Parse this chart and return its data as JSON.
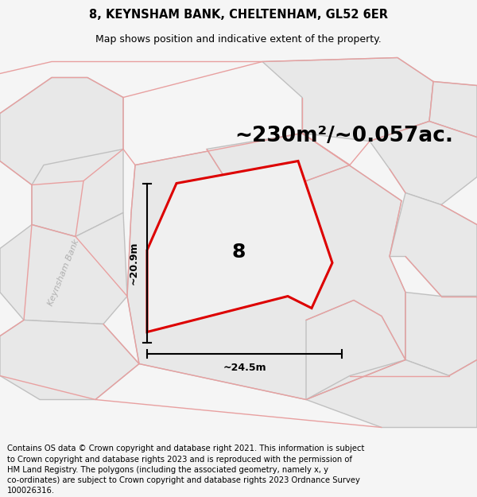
{
  "title_line1": "8, KEYNSHAM BANK, CHELTENHAM, GL52 6ER",
  "title_line2": "Map shows position and indicative extent of the property.",
  "area_text": "~230m²/~0.057ac.",
  "label_number": "8",
  "dim_width": "~24.5m",
  "dim_height": "~20.9m",
  "road_label": "Keynsham Bank",
  "footer_text": "Contains OS data © Crown copyright and database right 2021. This information is subject to Crown copyright and database rights 2023 and is reproduced with the permission of HM Land Registry. The polygons (including the associated geometry, namely x, y co-ordinates) are subject to Crown copyright and database rights 2023 Ordnance Survey 100026316.",
  "bg_color": "#f5f5f5",
  "map_bg": "#ffffff",
  "block_fill": "#e8e8e8",
  "block_edge": "#c0c0c0",
  "pink": "#e8a0a0",
  "red_outline": "#dd0000",
  "title_fontsize": 10.5,
  "subtitle_fontsize": 9.0,
  "area_fontsize": 19,
  "footer_fontsize": 7.2,
  "num_fontsize": 18
}
